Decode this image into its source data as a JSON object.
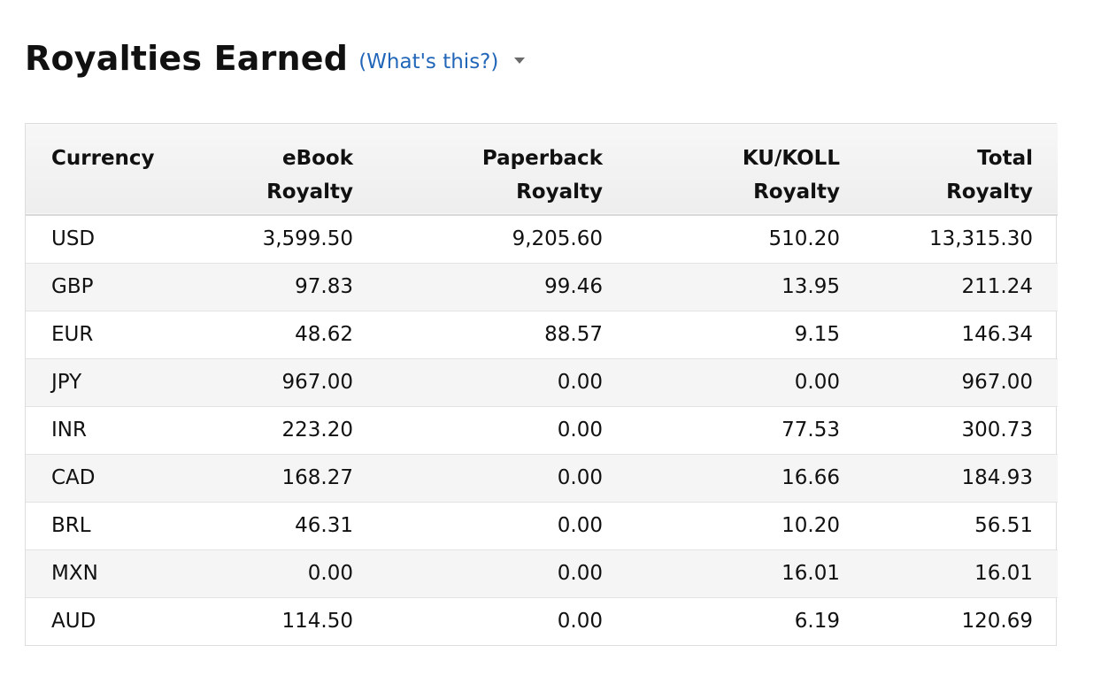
{
  "header": {
    "title": "Royalties Earned",
    "help_link": "(What's this?)",
    "caret_icon": "caret-down-icon"
  },
  "table": {
    "columns": [
      [
        "Currency"
      ],
      [
        "eBook",
        "Royalty"
      ],
      [
        "Paperback",
        "Royalty"
      ],
      [
        "KU/KOLL",
        "Royalty"
      ],
      [
        "Total",
        "Royalty"
      ]
    ],
    "rows": [
      [
        "USD",
        "3,599.50",
        "9,205.60",
        "510.20",
        "13,315.30"
      ],
      [
        "GBP",
        "97.83",
        "99.46",
        "13.95",
        "211.24"
      ],
      [
        "EUR",
        "48.62",
        "88.57",
        "9.15",
        "146.34"
      ],
      [
        "JPY",
        "967.00",
        "0.00",
        "0.00",
        "967.00"
      ],
      [
        "INR",
        "223.20",
        "0.00",
        "77.53",
        "300.73"
      ],
      [
        "CAD",
        "168.27",
        "0.00",
        "16.66",
        "184.93"
      ],
      [
        "BRL",
        "46.31",
        "0.00",
        "10.20",
        "56.51"
      ],
      [
        "MXN",
        "0.00",
        "0.00",
        "16.01",
        "16.01"
      ],
      [
        "AUD",
        "114.50",
        "0.00",
        "6.19",
        "120.69"
      ]
    ]
  },
  "colors": {
    "link": "#2166b8",
    "header_bg": "#f2f2f2",
    "stripe": "#f5f5f5",
    "border": "#dddddd"
  }
}
